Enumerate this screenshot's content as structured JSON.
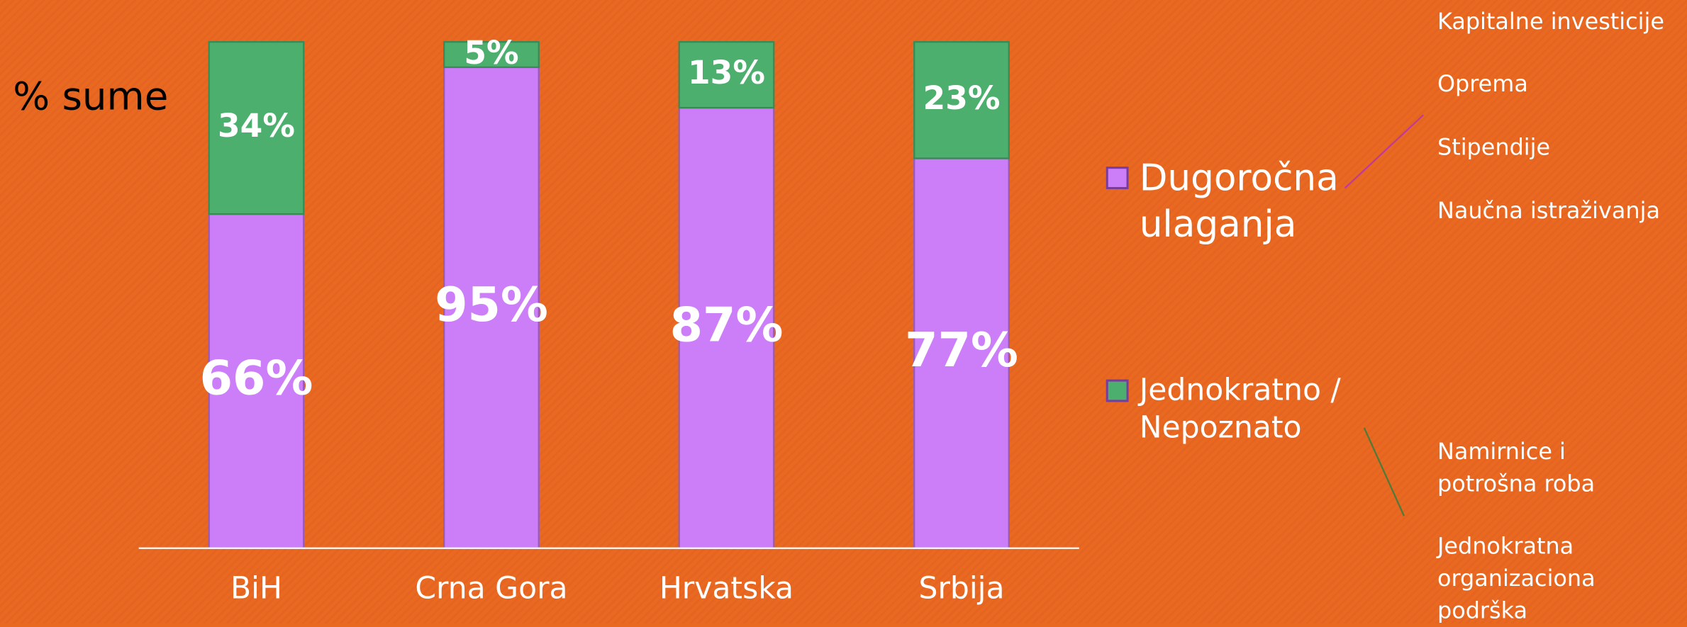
{
  "chart_data": {
    "type": "bar",
    "stacked": true,
    "y_label": "% sume",
    "categories": [
      "BiH",
      "Crna Gora",
      "Hrvatska",
      "Srbija"
    ],
    "series": [
      {
        "name": "Dugoročna ulaganja",
        "color": "#cc7ef8",
        "values": [
          66,
          95,
          87,
          77
        ],
        "value_labels": [
          "66%",
          "95%",
          "87%",
          "77%"
        ]
      },
      {
        "name": "Jednokratno / Nepoznato",
        "color": "#4caf6e",
        "values": [
          34,
          5,
          13,
          23
        ],
        "value_labels": [
          "34%",
          "5%",
          "13%",
          "23%"
        ]
      }
    ],
    "ylim": [
      0,
      100
    ],
    "annotations": [
      [
        "Kapitalne investicije",
        "Oprema",
        "Stipendije",
        "Naučna istraživanja"
      ],
      [
        "Namirnice i potrošna roba",
        "Jednokratna organizaciona podrška"
      ]
    ]
  }
}
